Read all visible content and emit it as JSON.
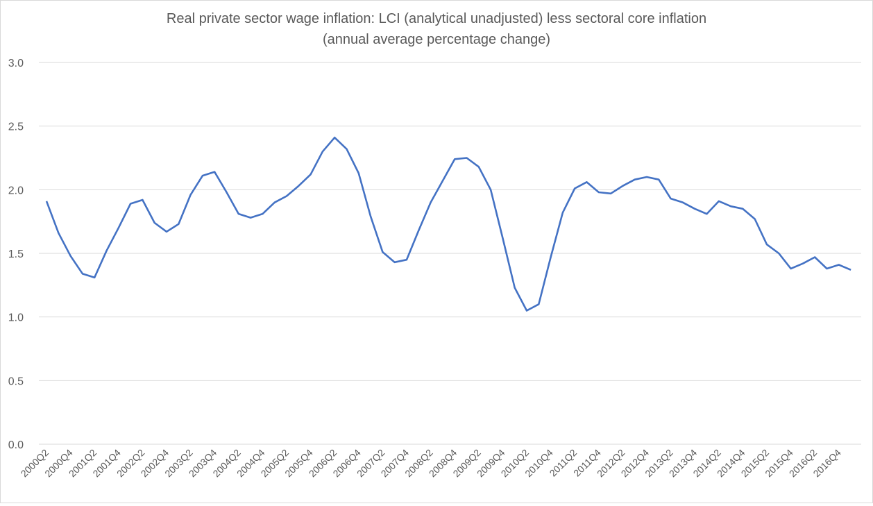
{
  "chart_data": {
    "type": "line",
    "title": "Real private sector wage inflation:  LCI (analytical unadjusted) less sectoral core inflation",
    "subtitle": "(annual average percentage change)",
    "xlabel": "",
    "ylabel": "",
    "ylim": [
      0,
      3
    ],
    "yticks": [
      "0.0",
      "0.5",
      "1.0",
      "1.5",
      "2.0",
      "2.5",
      "3.0"
    ],
    "grid": true,
    "legend": "none",
    "line_color": "#4472C4",
    "x": [
      "2000Q2",
      "2000Q3",
      "2000Q4",
      "2001Q1",
      "2001Q2",
      "2001Q3",
      "2001Q4",
      "2002Q1",
      "2002Q2",
      "2002Q3",
      "2002Q4",
      "2003Q1",
      "2003Q2",
      "2003Q3",
      "2003Q4",
      "2004Q1",
      "2004Q2",
      "2004Q3",
      "2004Q4",
      "2005Q1",
      "2005Q2",
      "2005Q3",
      "2005Q4",
      "2006Q1",
      "2006Q2",
      "2006Q3",
      "2006Q4",
      "2007Q1",
      "2007Q2",
      "2007Q3",
      "2007Q4",
      "2008Q1",
      "2008Q2",
      "2008Q3",
      "2008Q4",
      "2009Q1",
      "2009Q2",
      "2009Q3",
      "2009Q4",
      "2010Q1",
      "2010Q2",
      "2010Q3",
      "2010Q4",
      "2011Q1",
      "2011Q2",
      "2011Q3",
      "2011Q4",
      "2012Q1",
      "2012Q2",
      "2012Q3",
      "2012Q4",
      "2013Q1",
      "2013Q2",
      "2013Q3",
      "2013Q4",
      "2014Q1",
      "2014Q2",
      "2014Q3",
      "2014Q4",
      "2015Q1",
      "2015Q2",
      "2015Q3",
      "2015Q4",
      "2016Q1",
      "2016Q2",
      "2016Q3",
      "2016Q4",
      "2017Q1"
    ],
    "xtick_labels": [
      "2000Q2",
      "2000Q4",
      "2001Q2",
      "2001Q4",
      "2002Q2",
      "2002Q4",
      "2003Q2",
      "2003Q4",
      "2004Q2",
      "2004Q4",
      "2005Q2",
      "2005Q4",
      "2006Q2",
      "2006Q4",
      "2007Q2",
      "2007Q4",
      "2008Q2",
      "2008Q4",
      "2009Q2",
      "2009Q4",
      "2010Q2",
      "2010Q4",
      "2011Q2",
      "2011Q4",
      "2012Q2",
      "2012Q4",
      "2013Q2",
      "2013Q4",
      "2014Q2",
      "2014Q4",
      "2015Q2",
      "2015Q4",
      "2016Q2",
      "2016Q4"
    ],
    "values": [
      1.91,
      1.66,
      1.48,
      1.34,
      1.31,
      1.52,
      1.7,
      1.89,
      1.92,
      1.74,
      1.67,
      1.73,
      1.96,
      2.11,
      2.14,
      1.98,
      1.81,
      1.78,
      1.81,
      1.9,
      1.95,
      2.03,
      2.12,
      2.3,
      2.41,
      2.32,
      2.13,
      1.79,
      1.51,
      1.43,
      1.45,
      1.68,
      1.9,
      2.07,
      2.24,
      2.25,
      2.18,
      2.0,
      1.62,
      1.23,
      1.05,
      1.1,
      1.47,
      1.82,
      2.01,
      2.06,
      1.98,
      1.97,
      2.03,
      2.08,
      2.1,
      2.08,
      1.93,
      1.9,
      1.85,
      1.81,
      1.91,
      1.87,
      1.85,
      1.77,
      1.57,
      1.5,
      1.38,
      1.42,
      1.47,
      1.38,
      1.41,
      1.37
    ]
  }
}
